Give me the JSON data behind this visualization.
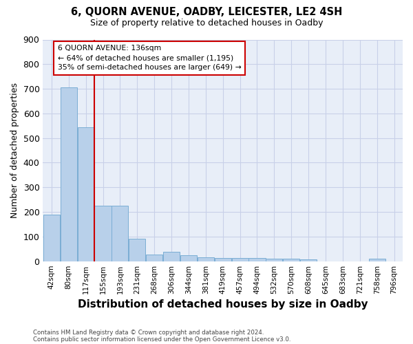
{
  "title": "6, QUORN AVENUE, OADBY, LEICESTER, LE2 4SH",
  "subtitle": "Size of property relative to detached houses in Oadby",
  "xlabel": "Distribution of detached houses by size in Oadby",
  "ylabel": "Number of detached properties",
  "bar_color": "#b8d0ea",
  "bar_edge_color": "#7aadd4",
  "grid_color": "#c8d0e8",
  "background_color": "#e8eef8",
  "categories": [
    "42sqm",
    "80sqm",
    "117sqm",
    "155sqm",
    "193sqm",
    "231sqm",
    "268sqm",
    "306sqm",
    "344sqm",
    "381sqm",
    "419sqm",
    "457sqm",
    "494sqm",
    "532sqm",
    "570sqm",
    "608sqm",
    "645sqm",
    "683sqm",
    "721sqm",
    "758sqm",
    "796sqm"
  ],
  "values": [
    190,
    707,
    543,
    224,
    224,
    91,
    27,
    38,
    25,
    15,
    13,
    13,
    12,
    10,
    10,
    7,
    0,
    0,
    0,
    10,
    0
  ],
  "ylim": [
    0,
    900
  ],
  "yticks": [
    0,
    100,
    200,
    300,
    400,
    500,
    600,
    700,
    800,
    900
  ],
  "property_sqm": 136,
  "annotation_text": "6 QUORN AVENUE: 136sqm\n← 64% of detached houses are smaller (1,195)\n35% of semi-detached houses are larger (649) →",
  "annotation_box_color": "#ffffff",
  "annotation_box_edge": "#cc0000",
  "red_line_color": "#cc0000",
  "footnote1": "Contains HM Land Registry data © Crown copyright and database right 2024.",
  "footnote2": "Contains public sector information licensed under the Open Government Licence v3.0."
}
